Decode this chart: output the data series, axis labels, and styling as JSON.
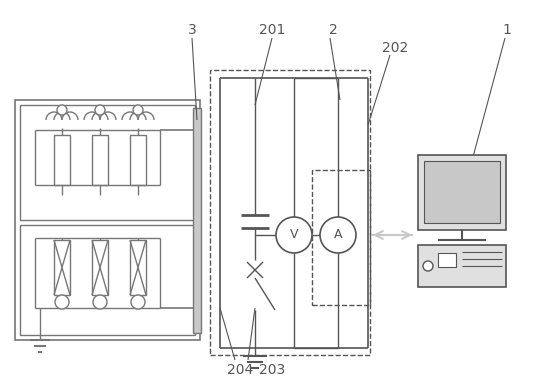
{
  "fig_width": 5.36,
  "fig_height": 3.88,
  "dpi": 100,
  "lc": "#777777",
  "dc": "#555555",
  "bg": "#ffffff",
  "gray_fill": "#c8c8c8",
  "label_color": "#444444"
}
